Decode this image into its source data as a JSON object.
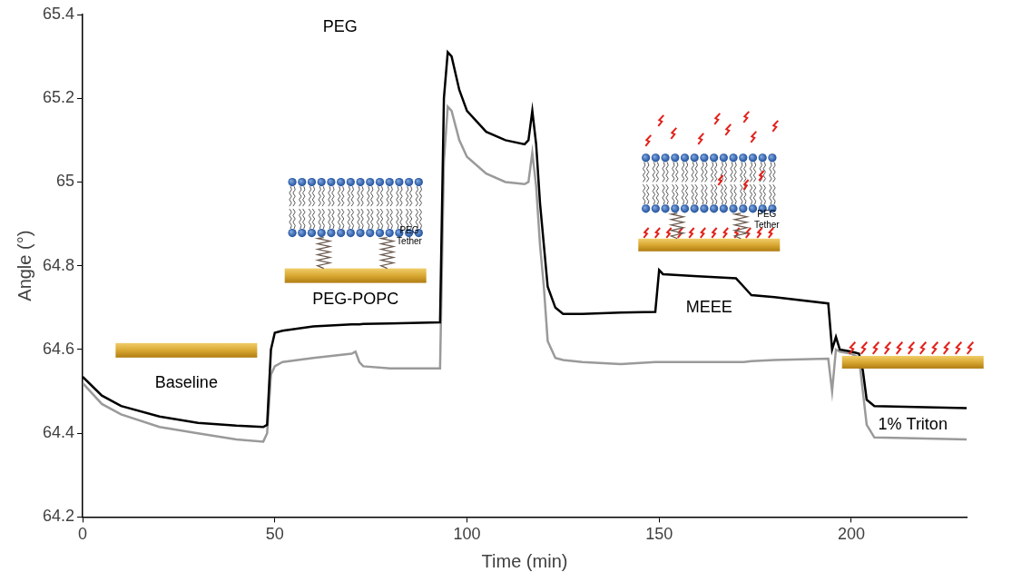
{
  "chart_data": {
    "type": "line",
    "x_label": "Time (min)",
    "y_label": "Angle (°)",
    "x": [
      0,
      5,
      10,
      20,
      30,
      40,
      47,
      48,
      49,
      50,
      52,
      60,
      70,
      71,
      72,
      73,
      80,
      93,
      94,
      95,
      96,
      98,
      100,
      105,
      110,
      115,
      116,
      117,
      118,
      119,
      120,
      121,
      123,
      125,
      130,
      140,
      149,
      150,
      151,
      160,
      170,
      172,
      174,
      180,
      194,
      195,
      196,
      197,
      200,
      202,
      203,
      204,
      206,
      230
    ],
    "series": [
      {
        "color": "#000000",
        "values": [
          64.535,
          64.49,
          64.465,
          64.44,
          64.425,
          64.418,
          64.415,
          64.42,
          64.6,
          64.64,
          64.645,
          64.655,
          64.66,
          64.66,
          64.66,
          64.661,
          64.662,
          64.665,
          65.2,
          65.31,
          65.3,
          65.22,
          65.17,
          65.12,
          65.1,
          65.09,
          65.1,
          65.17,
          65.09,
          64.95,
          64.85,
          64.75,
          64.7,
          64.685,
          64.685,
          64.688,
          64.69,
          64.79,
          64.78,
          64.775,
          64.77,
          64.75,
          64.73,
          64.725,
          64.71,
          64.6,
          64.63,
          64.6,
          64.595,
          64.59,
          64.55,
          64.48,
          64.465,
          64.46
        ]
      },
      {
        "color": "#9a9a9a",
        "values": [
          64.52,
          64.47,
          64.445,
          64.415,
          64.4,
          64.385,
          64.38,
          64.4,
          64.54,
          64.56,
          64.57,
          64.58,
          64.59,
          64.595,
          64.57,
          64.56,
          64.555,
          64.555,
          65.05,
          65.18,
          65.17,
          65.1,
          65.06,
          65.02,
          65.0,
          64.995,
          65.0,
          65.07,
          64.99,
          64.85,
          64.75,
          64.62,
          64.58,
          64.575,
          64.57,
          64.565,
          64.57,
          64.57,
          64.57,
          64.57,
          64.57,
          64.57,
          64.572,
          64.575,
          64.578,
          64.5,
          64.6,
          64.595,
          64.59,
          64.58,
          64.5,
          64.42,
          64.39,
          64.385
        ]
      }
    ],
    "xlim": [
      0,
      230
    ],
    "xticks": [
      0,
      50,
      100,
      150,
      200
    ],
    "ylim": [
      64.2,
      65.4
    ],
    "yticks": [
      64.2,
      64.4,
      64.6,
      64.8,
      65,
      65.2,
      65.4
    ],
    "grid": false,
    "annotations": [
      {
        "text": "Baseline",
        "x": 27,
        "y": 64.52
      },
      {
        "text": "PEG-POPC",
        "x": 71,
        "y": 64.72
      },
      {
        "text": "PEG Tether",
        "x": 85,
        "y": 64.87
      },
      {
        "text": "PEG",
        "x": 67,
        "y": 65.37
      },
      {
        "text": "MEEE",
        "x": 163,
        "y": 64.7
      },
      {
        "text": "PEG Tether",
        "x": 178,
        "y": 64.91
      },
      {
        "text": "1% Triton",
        "x": 216,
        "y": 64.42
      }
    ]
  }
}
